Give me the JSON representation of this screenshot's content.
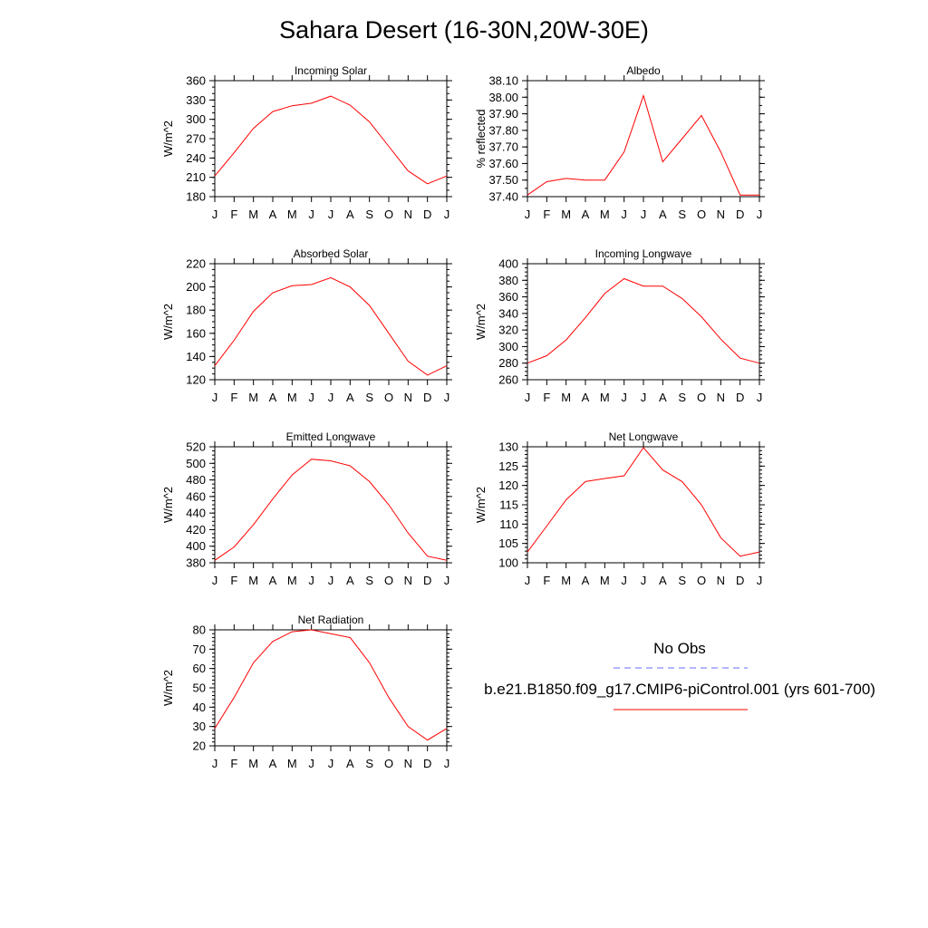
{
  "title": "Sahara Desert (16-30N,20W-30E)",
  "colors": {
    "model_line": "#ff0000",
    "obs_line": "#6a6aff",
    "axis": "#000000"
  },
  "legend": {
    "obs_label": "No Obs",
    "model_label": "b.e21.B1850.f09_g17.CMIP6-piControl.001 (yrs 601-700)"
  },
  "chart_data": [
    {
      "type": "line",
      "title": "Incoming Solar",
      "ylabel": "W/m^2",
      "categories": [
        "J",
        "F",
        "M",
        "A",
        "M",
        "J",
        "J",
        "A",
        "S",
        "O",
        "N",
        "D",
        "J"
      ],
      "yticks": [
        "360",
        "330",
        "300",
        "270",
        "240",
        "210",
        "180"
      ],
      "ylim": [
        180,
        360
      ],
      "minor_step": 10,
      "values": [
        212,
        248,
        286,
        312,
        321,
        325,
        336,
        322,
        296,
        258,
        220,
        200,
        212
      ]
    },
    {
      "type": "line",
      "title": "Albedo",
      "ylabel": "% reflected",
      "categories": [
        "J",
        "F",
        "M",
        "A",
        "M",
        "J",
        "J",
        "A",
        "S",
        "O",
        "N",
        "D",
        "J"
      ],
      "yticks": [
        "38.10",
        "38.00",
        "37.90",
        "37.80",
        "37.70",
        "37.60",
        "37.50",
        "37.40"
      ],
      "ylim": [
        37.4,
        38.1
      ],
      "minor_step": 0.05,
      "values": [
        37.41,
        37.49,
        37.51,
        37.5,
        37.5,
        37.67,
        38.01,
        37.61,
        37.75,
        37.89,
        37.67,
        37.41,
        37.41
      ]
    },
    {
      "type": "line",
      "title": "Absorbed Solar",
      "ylabel": "W/m^2",
      "categories": [
        "J",
        "F",
        "M",
        "A",
        "M",
        "J",
        "J",
        "A",
        "S",
        "O",
        "N",
        "D",
        "J"
      ],
      "yticks": [
        "220",
        "200",
        "180",
        "160",
        "140",
        "120"
      ],
      "ylim": [
        120,
        220
      ],
      "minor_step": 5,
      "values": [
        132,
        154,
        179,
        195,
        201,
        202,
        208,
        200,
        184,
        160,
        136,
        124,
        132
      ]
    },
    {
      "type": "line",
      "title": "Incoming Longwave",
      "ylabel": "W/m^2",
      "categories": [
        "J",
        "F",
        "M",
        "A",
        "M",
        "J",
        "J",
        "A",
        "S",
        "O",
        "N",
        "D",
        "J"
      ],
      "yticks": [
        "400",
        "380",
        "360",
        "340",
        "320",
        "300",
        "280",
        "260"
      ],
      "ylim": [
        260,
        400
      ],
      "minor_step": 5,
      "values": [
        280,
        289,
        308,
        335,
        364,
        382,
        373,
        373,
        358,
        336,
        309,
        286,
        280
      ]
    },
    {
      "type": "line",
      "title": "Emitted Longwave",
      "ylabel": "W/m^2",
      "categories": [
        "J",
        "F",
        "M",
        "A",
        "M",
        "J",
        "J",
        "A",
        "S",
        "O",
        "N",
        "D",
        "J"
      ],
      "yticks": [
        "520",
        "500",
        "480",
        "460",
        "440",
        "420",
        "400",
        "380"
      ],
      "ylim": [
        380,
        520
      ],
      "minor_step": 5,
      "values": [
        383,
        399,
        426,
        457,
        486,
        505,
        503,
        497,
        478,
        450,
        416,
        388,
        383
      ]
    },
    {
      "type": "line",
      "title": "Net Longwave",
      "ylabel": "W/m^2",
      "categories": [
        "J",
        "F",
        "M",
        "A",
        "M",
        "J",
        "J",
        "A",
        "S",
        "O",
        "N",
        "D",
        "J"
      ],
      "yticks": [
        "130",
        "125",
        "120",
        "115",
        "110",
        "105",
        "100"
      ],
      "ylim": [
        100,
        130
      ],
      "minor_step": 1,
      "values": [
        102.8,
        109.5,
        116.3,
        121,
        121.8,
        122.5,
        129.8,
        124,
        121,
        115,
        106.5,
        101.7,
        102.8
      ]
    },
    {
      "type": "line",
      "title": "Net Radiation",
      "ylabel": "W/m^2",
      "categories": [
        "J",
        "F",
        "M",
        "A",
        "M",
        "J",
        "J",
        "A",
        "S",
        "O",
        "N",
        "D",
        "J"
      ],
      "yticks": [
        "80",
        "70",
        "60",
        "50",
        "40",
        "30",
        "20"
      ],
      "ylim": [
        20,
        80
      ],
      "minor_step": 2,
      "values": [
        29,
        45,
        63,
        74,
        79,
        80,
        78,
        76,
        63,
        45,
        30,
        23,
        29
      ]
    }
  ]
}
